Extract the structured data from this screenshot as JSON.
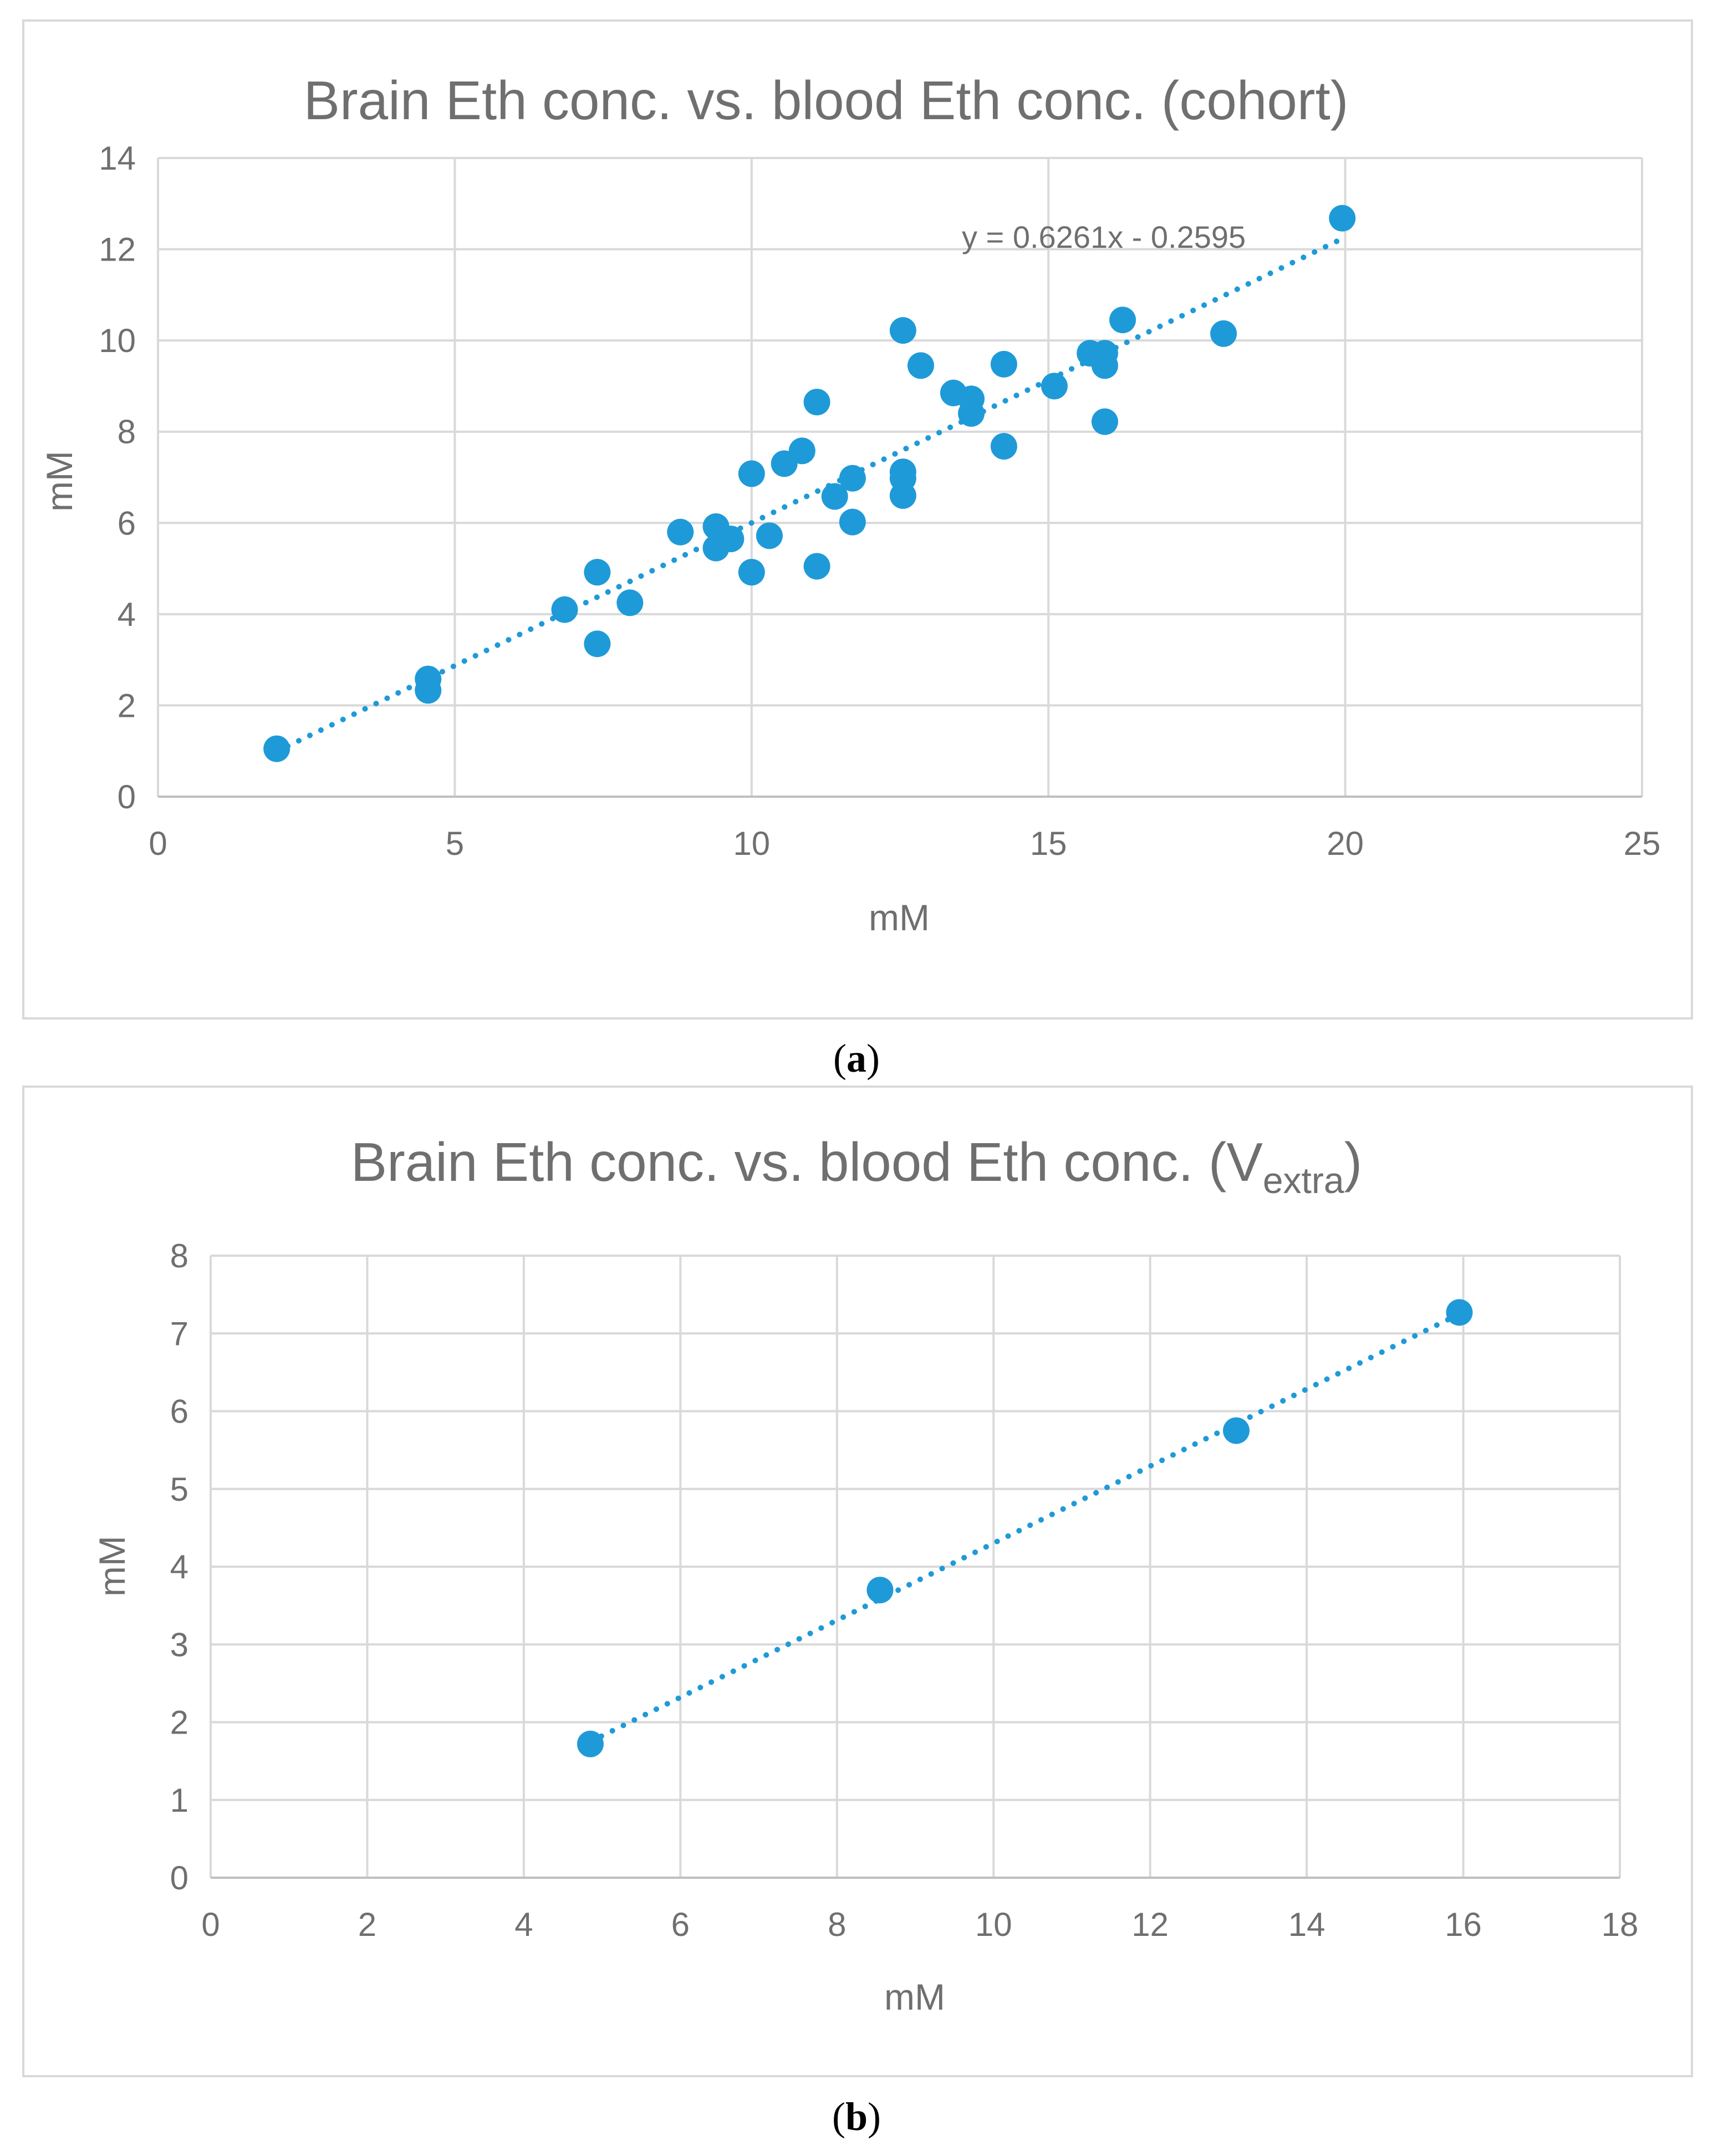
{
  "chart_data": [
    {
      "type": "scatter",
      "title": "Brain Eth conc. vs. blood Eth conc. (cohort)",
      "xlabel": "mM",
      "ylabel": "mM",
      "xlim": [
        0,
        25
      ],
      "ylim": [
        0,
        14
      ],
      "xticks": [
        "0",
        "5",
        "10",
        "15",
        "20",
        "25"
      ],
      "yticks": [
        "0",
        "2",
        "4",
        "6",
        "8",
        "10",
        "12",
        "14"
      ],
      "grid": true,
      "caption": "a",
      "trendline": {
        "style": "dotted linear",
        "slope": 0.6261,
        "intercept": -0.2595,
        "label": "y = 0.6261x - 0.2595",
        "x_range": [
          2,
          20
        ]
      },
      "points": [
        [
          2.0,
          1.05
        ],
        [
          4.55,
          2.58
        ],
        [
          4.55,
          2.33
        ],
        [
          6.85,
          4.1
        ],
        [
          7.4,
          4.92
        ],
        [
          7.4,
          3.35
        ],
        [
          7.95,
          4.25
        ],
        [
          8.8,
          5.8
        ],
        [
          9.4,
          5.92
        ],
        [
          9.4,
          5.45
        ],
        [
          9.65,
          5.65
        ],
        [
          10.0,
          7.08
        ],
        [
          10.0,
          4.92
        ],
        [
          10.3,
          5.72
        ],
        [
          10.55,
          7.3
        ],
        [
          10.85,
          7.58
        ],
        [
          11.1,
          8.65
        ],
        [
          11.1,
          5.05
        ],
        [
          11.4,
          6.58
        ],
        [
          11.7,
          6.98
        ],
        [
          11.7,
          6.02
        ],
        [
          12.55,
          10.22
        ],
        [
          12.55,
          7.12
        ],
        [
          12.55,
          6.98
        ],
        [
          12.55,
          6.6
        ],
        [
          12.85,
          9.45
        ],
        [
          13.4,
          8.85
        ],
        [
          13.7,
          8.72
        ],
        [
          13.7,
          8.4
        ],
        [
          14.25,
          9.48
        ],
        [
          14.25,
          7.68
        ],
        [
          15.1,
          9.0
        ],
        [
          15.7,
          9.72
        ],
        [
          15.95,
          9.72
        ],
        [
          15.95,
          9.45
        ],
        [
          15.95,
          8.22
        ],
        [
          16.25,
          10.45
        ],
        [
          17.95,
          10.15
        ],
        [
          19.95,
          12.68
        ]
      ],
      "color": "#1f9ad8"
    },
    {
      "type": "scatter",
      "title": "Brain Eth conc. vs. blood Eth conc. (V",
      "title_sub": "extra",
      "title_end": ")",
      "xlabel": "mM",
      "ylabel": "mM",
      "xlim": [
        0,
        18
      ],
      "ylim": [
        0,
        8
      ],
      "xticks": [
        "0",
        "2",
        "4",
        "6",
        "8",
        "10",
        "12",
        "14",
        "16",
        "18"
      ],
      "yticks": [
        "0",
        "1",
        "2",
        "3",
        "4",
        "5",
        "6",
        "7",
        "8"
      ],
      "grid": true,
      "caption": "b",
      "trendline": {
        "style": "dotted linear",
        "x_range": [
          4.85,
          15.95
        ],
        "y_range": [
          1.75,
          7.25
        ]
      },
      "points": [
        [
          4.85,
          1.72
        ],
        [
          8.55,
          3.7
        ],
        [
          13.1,
          5.75
        ],
        [
          15.95,
          7.27
        ]
      ],
      "color": "#1f9ad8"
    }
  ]
}
